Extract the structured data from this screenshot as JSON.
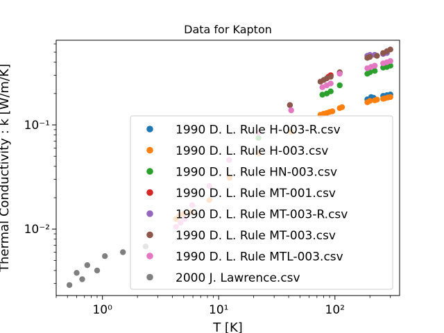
{
  "chart_data": {
    "type": "scatter",
    "title": "Data for Kapton",
    "xlabel": "T [K]",
    "ylabel": "Thermal Conductivity : k [W/m/K]",
    "xscale": "log",
    "yscale": "log",
    "xlim": [
      0.4,
      360
    ],
    "ylim": [
      0.0023,
      0.65
    ],
    "xticks": [
      {
        "value": 1,
        "label": "10⁰"
      },
      {
        "value": 10,
        "label": "10¹"
      },
      {
        "value": 100,
        "label": "10²"
      }
    ],
    "yticks": [
      {
        "value": 0.01,
        "label": "10⁻²"
      },
      {
        "value": 0.1,
        "label": "10⁻¹"
      }
    ],
    "grid": false,
    "legend": {
      "placement": "lower-right"
    },
    "series": [
      {
        "name": "1990 D. L. Rule H-003-R.csv",
        "color": "#1f77b4",
        "x": [
          190,
          205,
          215,
          260,
          280,
          300
        ],
        "y": [
          0.176,
          0.185,
          0.182,
          0.19,
          0.193,
          0.196
        ]
      },
      {
        "name": "1990 D. L. Rule H-003.csv",
        "color": "#ff7f0e",
        "x": [
          4.3,
          4.6,
          5.0,
          5.8,
          8.3,
          12.4,
          22,
          42,
          75,
          80,
          85,
          90,
          95,
          110,
          115,
          190,
          200,
          220,
          230,
          260,
          270,
          285,
          300
        ],
        "y": [
          0.0125,
          0.0135,
          0.014,
          0.0145,
          0.019,
          0.031,
          0.053,
          0.086,
          0.125,
          0.128,
          0.13,
          0.133,
          0.135,
          0.145,
          0.148,
          0.165,
          0.17,
          0.172,
          0.175,
          0.178,
          0.18,
          0.183,
          0.185
        ]
      },
      {
        "name": "1990 D. L. Rule HN-003.csv",
        "color": "#2ca02c",
        "x": [
          22,
          78,
          85,
          92,
          110,
          190,
          200,
          220,
          260,
          280,
          300
        ],
        "y": [
          0.075,
          0.195,
          0.2,
          0.21,
          0.24,
          0.31,
          0.32,
          0.33,
          0.355,
          0.36,
          0.37
        ]
      },
      {
        "name": "1990 D. L. Rule MT-001.csv",
        "color": "#d62728",
        "x": [
          88,
          92
        ],
        "y": [
          0.29,
          0.3
        ]
      },
      {
        "name": "1990 D. L. Rule MT-003-R.csv",
        "color": "#9467bd",
        "x": [
          41,
          190,
          200,
          220,
          260,
          280
        ],
        "y": [
          0.155,
          0.46,
          0.47,
          0.47,
          0.48,
          0.49
        ]
      },
      {
        "name": "1990 D. L. Rule MT-003.csv",
        "color": "#8c564b",
        "x": [
          41,
          75,
          80,
          85,
          92,
          110,
          190,
          200,
          230,
          260,
          280,
          300
        ],
        "y": [
          0.155,
          0.26,
          0.27,
          0.28,
          0.29,
          0.32,
          0.44,
          0.45,
          0.46,
          0.49,
          0.51,
          0.53
        ]
      },
      {
        "name": "1990 D. L. Rule MTL-003.csv",
        "color": "#e377c2",
        "x": [
          4.3,
          4.7,
          5.1,
          5.9,
          8.3,
          12.3,
          22,
          42,
          78,
          85,
          92,
          110,
          190,
          205,
          220,
          260,
          280,
          300
        ],
        "y": [
          0.0105,
          0.0115,
          0.0125,
          0.017,
          0.026,
          0.046,
          0.084,
          0.138,
          0.23,
          0.24,
          0.25,
          0.31,
          0.35,
          0.36,
          0.37,
          0.39,
          0.4,
          0.41
        ]
      },
      {
        "name": "2000 J. Lawrence.csv",
        "color": "#7f7f7f",
        "x": [
          0.52,
          0.6,
          0.67,
          0.74,
          0.9,
          1.05,
          1.5,
          2.35
        ],
        "y": [
          0.0029,
          0.0038,
          0.0033,
          0.0045,
          0.004,
          0.0055,
          0.006,
          0.0068
        ]
      }
    ]
  }
}
